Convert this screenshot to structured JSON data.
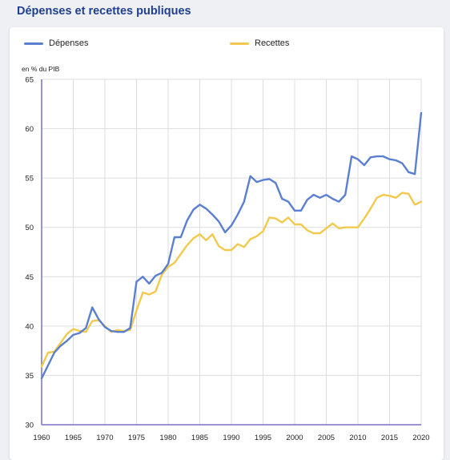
{
  "title": "Dépenses et recettes publiques",
  "chart_data": {
    "type": "line",
    "ylabel": "en % du PIB",
    "xlim": [
      1960,
      2020
    ],
    "ylim": [
      30,
      65
    ],
    "xticks": [
      1960,
      1965,
      1970,
      1975,
      1980,
      1985,
      1990,
      1995,
      2000,
      2005,
      2010,
      2015,
      2020
    ],
    "yticks": [
      30,
      35,
      40,
      45,
      50,
      55,
      60,
      65
    ],
    "grid": true,
    "legend_position": "top",
    "series": [
      {
        "name": "Dépenses",
        "color": "#5b7fd0",
        "x": [
          1960,
          1961,
          1962,
          1963,
          1964,
          1965,
          1966,
          1967,
          1968,
          1969,
          1970,
          1971,
          1972,
          1973,
          1974,
          1975,
          1976,
          1977,
          1978,
          1979,
          1980,
          1981,
          1982,
          1983,
          1984,
          1985,
          1986,
          1987,
          1988,
          1989,
          1990,
          1991,
          1992,
          1993,
          1994,
          1995,
          1996,
          1997,
          1998,
          1999,
          2000,
          2001,
          2002,
          2003,
          2004,
          2005,
          2006,
          2007,
          2008,
          2009,
          2010,
          2011,
          2012,
          2013,
          2014,
          2015,
          2016,
          2017,
          2018,
          2019,
          2020
        ],
        "values": [
          34.7,
          36.0,
          37.3,
          38.0,
          38.5,
          39.1,
          39.3,
          39.8,
          41.9,
          40.7,
          39.9,
          39.5,
          39.4,
          39.4,
          39.8,
          44.5,
          45.0,
          44.3,
          45.1,
          45.4,
          46.3,
          49.0,
          49.0,
          50.7,
          51.8,
          52.3,
          51.9,
          51.3,
          50.6,
          49.5,
          50.2,
          51.3,
          52.6,
          55.2,
          54.6,
          54.8,
          54.9,
          54.5,
          52.9,
          52.6,
          51.7,
          51.7,
          52.8,
          53.3,
          53.0,
          53.3,
          52.9,
          52.6,
          53.3,
          57.2,
          56.9,
          56.3,
          57.1,
          57.2,
          57.2,
          56.9,
          56.8,
          56.5,
          55.6,
          55.4,
          61.6
        ]
      },
      {
        "name": "Recettes",
        "color": "#f2c94c",
        "x": [
          1960,
          1961,
          1962,
          1963,
          1964,
          1965,
          1966,
          1967,
          1968,
          1969,
          1970,
          1971,
          1972,
          1973,
          1974,
          1975,
          1976,
          1977,
          1978,
          1979,
          1980,
          1981,
          1982,
          1983,
          1984,
          1985,
          1986,
          1987,
          1988,
          1989,
          1990,
          1991,
          1992,
          1993,
          1994,
          1995,
          1996,
          1997,
          1998,
          1999,
          2000,
          2001,
          2002,
          2003,
          2004,
          2005,
          2006,
          2007,
          2008,
          2009,
          2010,
          2011,
          2012,
          2013,
          2014,
          2015,
          2016,
          2017,
          2018,
          2019,
          2020
        ],
        "values": [
          35.9,
          37.3,
          37.4,
          38.3,
          39.2,
          39.7,
          39.5,
          39.4,
          40.5,
          40.6,
          40.0,
          39.4,
          39.6,
          39.5,
          39.6,
          41.6,
          43.4,
          43.2,
          43.5,
          45.2,
          46.0,
          46.4,
          47.3,
          48.2,
          48.9,
          49.3,
          48.7,
          49.3,
          48.1,
          47.7,
          47.7,
          48.3,
          48.0,
          48.8,
          49.1,
          49.6,
          51.0,
          50.9,
          50.5,
          51.0,
          50.3,
          50.3,
          49.7,
          49.4,
          49.4,
          49.9,
          50.4,
          49.9,
          50.0,
          50.0,
          50.0,
          50.9,
          51.9,
          53.0,
          53.3,
          53.2,
          53.0,
          53.5,
          53.4,
          52.3,
          52.6
        ]
      }
    ]
  }
}
